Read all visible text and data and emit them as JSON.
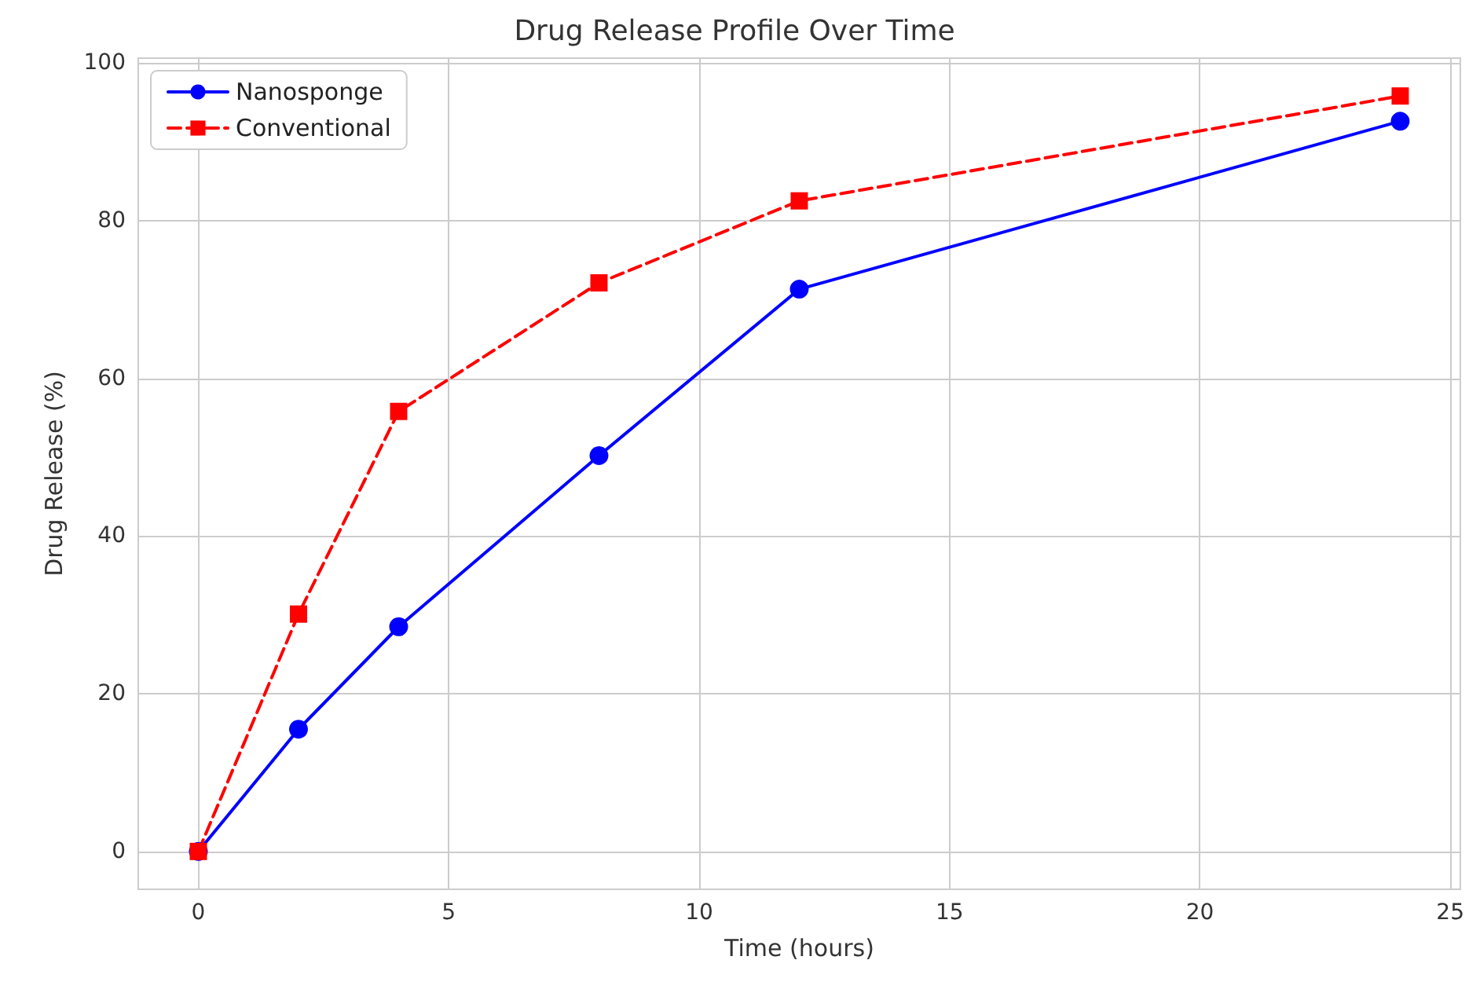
{
  "chart_data": {
    "type": "line",
    "title": "Drug Release Profile Over Time",
    "xlabel": "Time (hours)",
    "ylabel": "Drug Release (%)",
    "x": [
      0,
      2,
      4,
      8,
      12,
      24
    ],
    "series": [
      {
        "name": "Nanosponge",
        "color": "#0000ff",
        "values": [
          0,
          15.5,
          28.5,
          50.2,
          71.3,
          92.6
        ],
        "marker": "circle",
        "line_style": "solid"
      },
      {
        "name": "Conventional",
        "color": "#ff0000",
        "values": [
          0,
          30.1,
          55.8,
          72.1,
          82.5,
          95.8
        ],
        "marker": "square",
        "line_style": "dashed"
      }
    ],
    "xlim": [
      -1.2,
      25.2
    ],
    "xticks": [
      0,
      5,
      10,
      15,
      20,
      25
    ],
    "ylim": [
      -4.8,
      100.6
    ],
    "yticks": [
      0,
      20,
      40,
      60,
      80,
      100
    ],
    "grid": true,
    "legend": "top left"
  }
}
